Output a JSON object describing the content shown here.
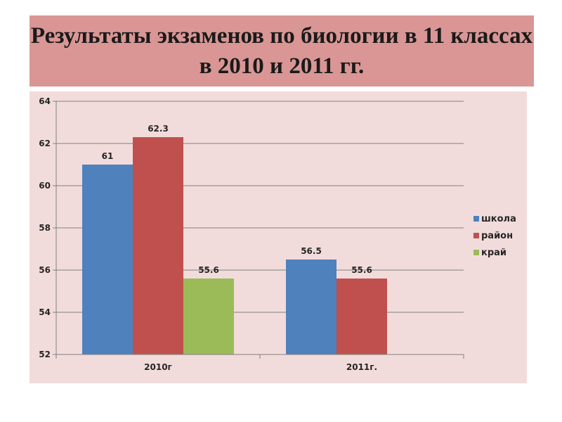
{
  "title": "Результаты экзаменов по биологии в 11 классах в  2010 и 2011 гг.",
  "chart_data": {
    "type": "bar",
    "categories": [
      "2010г",
      "2011г."
    ],
    "series": [
      {
        "name": "школа",
        "values": [
          61,
          56.5
        ],
        "color": "#4f81bd"
      },
      {
        "name": "район",
        "values": [
          62.3,
          55.6
        ],
        "color": "#c0504d"
      },
      {
        "name": "край",
        "values": [
          55.6,
          null
        ],
        "color": "#9bbb59"
      }
    ],
    "data_labels": [
      [
        "61",
        "56.5"
      ],
      [
        "62.3",
        "55.6"
      ],
      [
        "55.6",
        ""
      ]
    ],
    "yticks": [
      "52",
      "54",
      "56",
      "58",
      "60",
      "62",
      "64"
    ],
    "ylim": [
      52,
      64
    ],
    "grid": true,
    "legend_position": "right"
  }
}
